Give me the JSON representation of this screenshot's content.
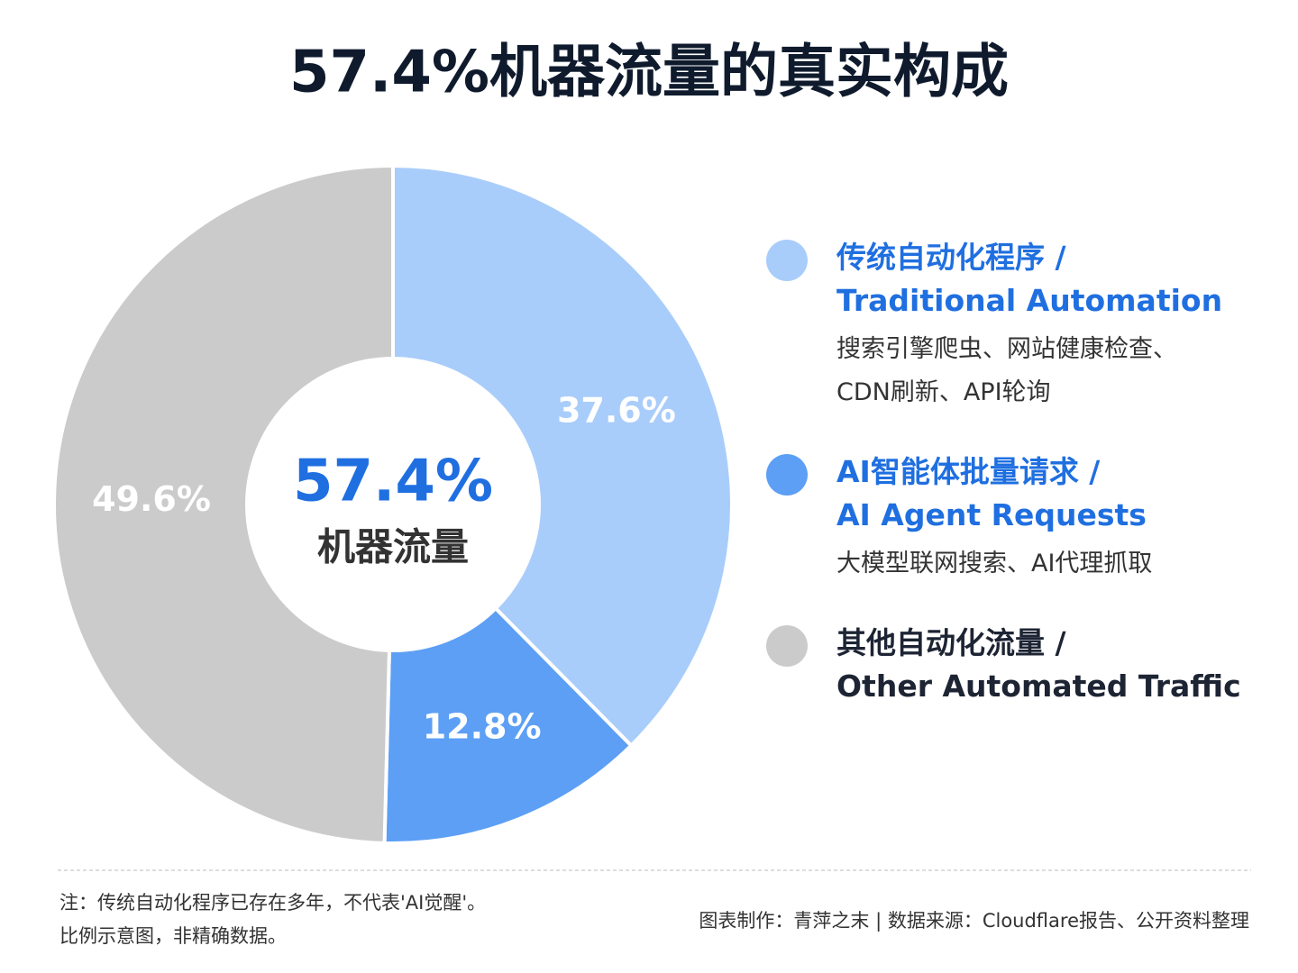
{
  "chart_data": {
    "type": "pie",
    "title": "57.4%机器流量的真实构成",
    "center_label": "57.4%",
    "center_sublabel": "机器流量",
    "categories": [
      "传统自动化程序 /",
      "AI智能体批量请求 /",
      "其他自动化流量 /"
    ],
    "categories_en": [
      "Traditional Automation",
      "AI Agent Requests",
      "Other Automated Traffic"
    ],
    "descriptions": [
      [
        "搜索引擎爬虫、网站健康检查、",
        "CDN刷新、API轮询"
      ],
      [
        "大模型联网搜索、AI代理抓取"
      ],
      null
    ],
    "values": [
      37.6,
      12.8,
      49.6
    ],
    "value_labels": [
      "37.6%",
      "12.8%",
      "49.6%"
    ],
    "colors": [
      "#a9cdfa",
      "#5c9ff5",
      "#cbcbcb"
    ],
    "legend_text_colors": [
      "#1f6fe0",
      "#1f6fe0",
      "#1d2433"
    ],
    "notes": [
      "注：传统自动化程序已存在多年，不代表'AI觉醒'。",
      "比例示意图，非精确数据。"
    ],
    "source": "图表制作：青萍之末 | 数据来源：Cloudflare报告、公开资料整理"
  }
}
